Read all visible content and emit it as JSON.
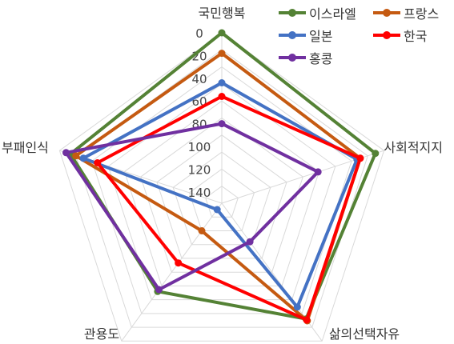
{
  "chart_data": {
    "type": "radar",
    "axes": [
      "국민행복",
      "사회적지지",
      "삶의선택자유",
      "관용도",
      "부패인식"
    ],
    "rlim": [
      0,
      150
    ],
    "radial_ticks": [
      0,
      20,
      40,
      60,
      80,
      100,
      120,
      140
    ],
    "reversed": true,
    "grid": true,
    "legend_position": "top-right",
    "series": [
      {
        "name": "이스라엘",
        "color": "#548235",
        "values": [
          0,
          8,
          24,
          54,
          10
        ]
      },
      {
        "name": "프랑스",
        "color": "#C55A11",
        "values": [
          18,
          22,
          22,
          120,
          15
        ]
      },
      {
        "name": "일본",
        "color": "#4472C4",
        "values": [
          44,
          25,
          37,
          143,
          22
        ]
      },
      {
        "name": "한국",
        "color": "#FF0000",
        "values": [
          56,
          22,
          23,
          85,
          35
        ]
      },
      {
        "name": "홍콩",
        "color": "#7030A0",
        "values": [
          80,
          61,
          108,
          56,
          6
        ]
      }
    ]
  }
}
